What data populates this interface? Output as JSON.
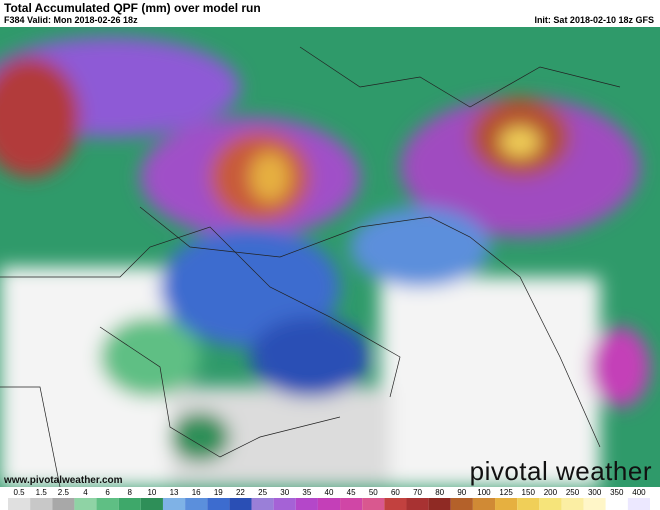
{
  "header": {
    "title": "Total Accumulated QPF (mm) over model run",
    "valid": "F384 Valid: Mon 2018-02-26 18z",
    "init": "Init: Sat 2018-02-10 18z GFS"
  },
  "footer": {
    "website": "www.pivotalweather.com",
    "logo": "pivotal weather"
  },
  "scale": {
    "labels": [
      0.5,
      1.5,
      2.5,
      4,
      6,
      8,
      10,
      13,
      16,
      19,
      22,
      25,
      30,
      35,
      40,
      45,
      50,
      60,
      70,
      80,
      90,
      100,
      125,
      150,
      200,
      250,
      300,
      350,
      400
    ],
    "colors": [
      "#e0e0e0",
      "#c8c8c8",
      "#a8a8a8",
      "#8fd3a5",
      "#5fbf84",
      "#3ea86a",
      "#2e8f58",
      "#7fb2e6",
      "#5b8fdc",
      "#3d6ccf",
      "#2a4fb5",
      "#9a7fd8",
      "#a562d6",
      "#b447c9",
      "#c43fb8",
      "#d046a6",
      "#d9588f",
      "#c2413f",
      "#a83232",
      "#8f2a24",
      "#b4612a",
      "#d08a35",
      "#e6b040",
      "#f0cf58",
      "#f6e47a",
      "#fbeea3",
      "#fff6c8",
      "#ffffff",
      "#ece8ff"
    ]
  }
}
